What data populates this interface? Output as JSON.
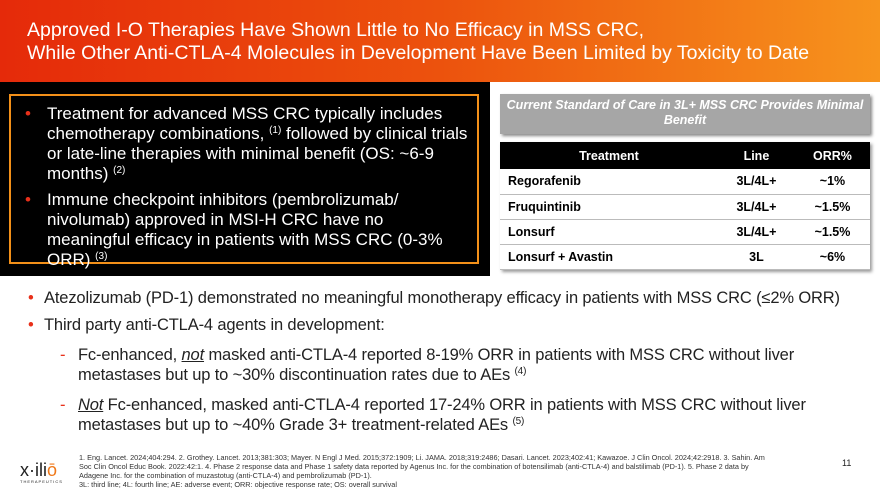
{
  "header": {
    "title_line1": "Approved I-O Therapies Have Shown Little to No Efficacy in MSS CRC,",
    "title_line2": "While Other Anti-CTLA-4 Molecules in Development Have Been Limited by Toxicity to Date"
  },
  "left_box": {
    "bullets": [
      {
        "text": "Treatment for advanced MSS CRC typically includes chemotherapy combinations, ",
        "sup1": "(1)",
        "text2": " followed by clinical trials or late-line therapies with minimal benefit (OS: ~6-9 months) ",
        "sup2": "(2)"
      },
      {
        "text": "Immune checkpoint inhibitors (pembrolizumab/ nivolumab) approved in MSI-H CRC have no meaningful efficacy in patients with MSS CRC (0-3% ORR) ",
        "sup1": "(3)"
      }
    ]
  },
  "table": {
    "caption": "Current Standard of Care in 3L+ MSS CRC Provides Minimal Benefit",
    "headers": [
      "Treatment",
      "Line",
      "ORR%"
    ],
    "rows": [
      [
        "Regorafenib",
        "3L/4L+",
        "~1%"
      ],
      [
        "Fruquintinib",
        "3L/4L+",
        "~1.5%"
      ],
      [
        "Lonsurf",
        "3L/4L+",
        "~1.5%"
      ],
      [
        "Lonsurf + Avastin",
        "3L",
        "~6%"
      ]
    ]
  },
  "main": {
    "bullet1": "Atezolizumab (PD-1) demonstrated no meaningful monotherapy efficacy in patients with MSS CRC (≤2% ORR)",
    "bullet2": "Third party anti-CTLA-4 agents in development:",
    "sub1": {
      "pre": "Fc-enhanced, ",
      "em": "not",
      "post": " masked anti-CTLA-4 reported 8-19% ORR in patients with MSS CRC without liver metastases but up to ~30% discontinuation rates due to AEs ",
      "sup": "(4)"
    },
    "sub2": {
      "em": "Not",
      "post": " Fc-enhanced, masked anti-CTLA-4 reported 17-24% ORR in patients with MSS CRC without liver metastases but up to ~40% Grade 3+ treatment-related AEs ",
      "sup": "(5)"
    }
  },
  "footer": {
    "refs": "1. Eng. Lancet. 2024;404:294. 2. Grothey. Lancet. 2013;381:303; Mayer. N Engl J Med. 2015;372:1909; Li. JAMA. 2018;319:2486; Dasari. Lancet. 2023;402:41; Kawazoe. J Clin Oncol. 2024;42:2918. 3. Sahin. Am Soc Clin Oncol Educ Book. 2022:42:1. 4. Phase 2 response data and Phase 1 safety data reported by Agenus Inc. for the combination of botensilimab (anti-CTLA-4) and balstilimab (PD-1). 5. Phase 2 data by Adagene Inc. for the combination of muzastotug (anti-CTLA-4) and pembrolizumab (PD-1).",
    "abbrev": "3L: third line; 4L: fourth line; AE: adverse event; ORR: objective response rate; OS: overall survival",
    "logo": "xilio",
    "logo_sub": "THERAPEUTICS",
    "page": "11"
  }
}
